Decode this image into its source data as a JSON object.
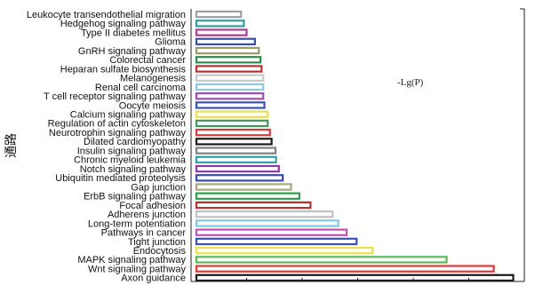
{
  "chart_data": {
    "type": "bar",
    "orientation": "horizontal",
    "title": "",
    "legend_text": "-Lg(P)",
    "ylabel": "通路",
    "xlabel": "",
    "xlim": [
      0,
      6.0
    ],
    "grid": false,
    "categories": [
      "Leukocyte transendothelial migration",
      "Hedgehog signaling pathway",
      "Type II diabetes mellitus",
      "Glioma",
      "GnRH signaling pathway",
      "Colorectal cancer",
      "Heparan sulfate biosynthesis",
      "Melanogenesis",
      "Renal cell carcinoma",
      "T cell receptor signaling pathway",
      "Oocyte meiosis",
      "Calcium signaling pathway",
      "Regulation of actin cytoskeleton",
      "Neurotrophin signaling pathway",
      "Dilated cardiomyopathy",
      "Insulin signaling pathway",
      "Chronic myeloid leukemia",
      "Notch signaling pathway",
      "Ubiquitin mediated proteolysis",
      "Gap junction",
      "ErbB signaling pathway",
      "Focal adhesion",
      "Adherens junction",
      "Long-term potentiation",
      "Pathways in cancer",
      "Tight junction",
      "Endocytosis",
      "MAPK signaling pathway",
      "Wnt signaling pathway",
      "Axon guidance"
    ],
    "values": [
      0.9,
      0.95,
      1.0,
      1.15,
      1.22,
      1.25,
      1.27,
      1.3,
      1.3,
      1.3,
      1.32,
      1.38,
      1.38,
      1.42,
      1.45,
      1.52,
      1.53,
      1.58,
      1.65,
      1.8,
      1.95,
      2.15,
      2.55,
      2.65,
      2.8,
      2.98,
      3.27,
      4.6,
      5.45,
      5.8
    ],
    "colors": [
      "#9e9e9e",
      "#2e9d9b",
      "#b03a8c",
      "#3a4fb0",
      "#9a9a6a",
      "#2a8f4a",
      "#b83030",
      "#c8c8c8",
      "#8cc8e0",
      "#9a50b0",
      "#3a50b0",
      "#e8e04a",
      "#3a9a5a",
      "#d83a3a",
      "#1a1a1a",
      "#808080",
      "#2aa0a8",
      "#8a3aa8",
      "#3a4aa8",
      "#a8a878",
      "#30a050",
      "#b83030",
      "#c0c0c0",
      "#7ac8e8",
      "#c850b0",
      "#3a50b8",
      "#e8e04a",
      "#5ab85a",
      "#e03838",
      "#1a1a1a"
    ]
  }
}
